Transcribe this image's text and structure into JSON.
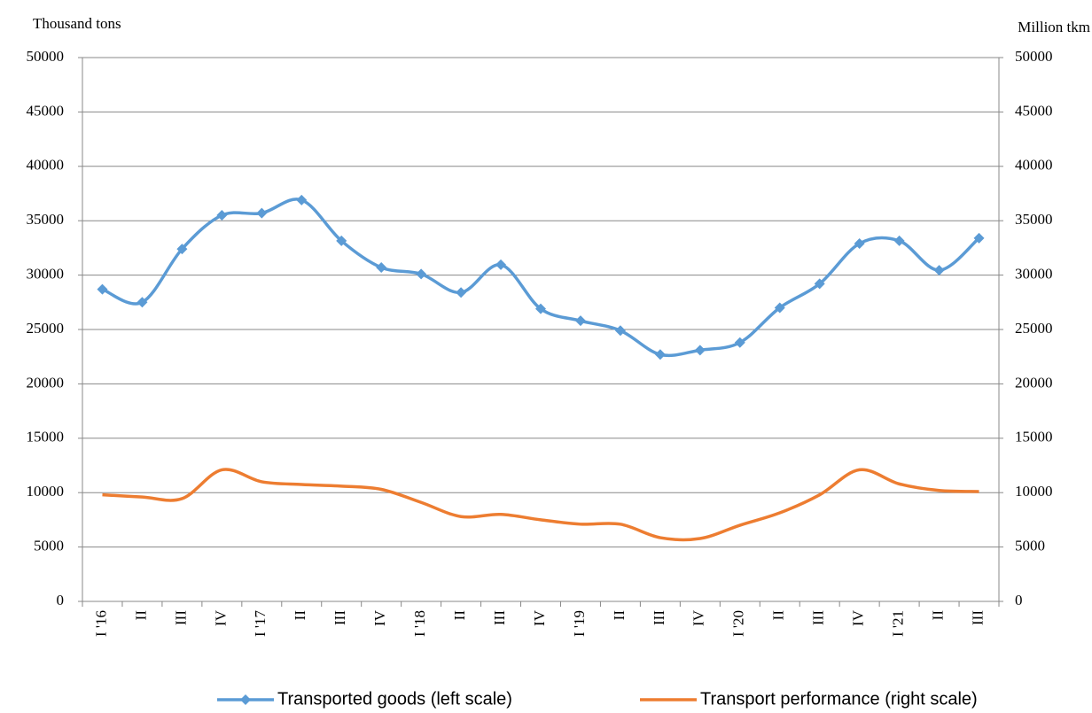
{
  "chart_data": {
    "type": "line",
    "y_label": "Thousand tons",
    "y2_label": "Million tkm",
    "categories": [
      "I '16",
      "II",
      "III",
      "IV",
      "I '17",
      "II",
      "III",
      "IV",
      "I '18",
      "II",
      "III",
      "IV",
      "I '19",
      "II",
      "III",
      "IV",
      "I '20",
      "II",
      "III",
      "IV",
      "I '21",
      "II",
      "III"
    ],
    "series": [
      {
        "name": "Transported goods (left scale)",
        "color": "#5b9bd5",
        "marker": "diamond",
        "smooth": true,
        "values": [
          28700,
          27500,
          32400,
          35500,
          35700,
          36900,
          33150,
          30700,
          30100,
          28400,
          30950,
          26900,
          25800,
          24900,
          22700,
          23100,
          23800,
          27000,
          29200,
          32900,
          33150,
          30450,
          33400
        ]
      },
      {
        "name": "Transport performance (right scale)",
        "color": "#ed7d31",
        "axis": "y2",
        "smooth": true,
        "values": [
          9800,
          9600,
          9450,
          12100,
          11000,
          10750,
          10600,
          10300,
          9100,
          7800,
          8000,
          7500,
          7100,
          7100,
          5860,
          5780,
          7000,
          8140,
          9800,
          12100,
          10800,
          10200,
          10100
        ]
      }
    ],
    "ylim": [
      0,
      50000
    ],
    "yticks": [
      0,
      5000,
      10000,
      15000,
      20000,
      25000,
      30000,
      35000,
      40000,
      45000,
      50000
    ],
    "y2lim": [
      0,
      50000
    ],
    "y2ticks": [
      0,
      5000,
      10000,
      15000,
      20000,
      25000,
      30000,
      35000,
      40000,
      45000,
      50000
    ],
    "grid": true,
    "legend": "bottom"
  }
}
